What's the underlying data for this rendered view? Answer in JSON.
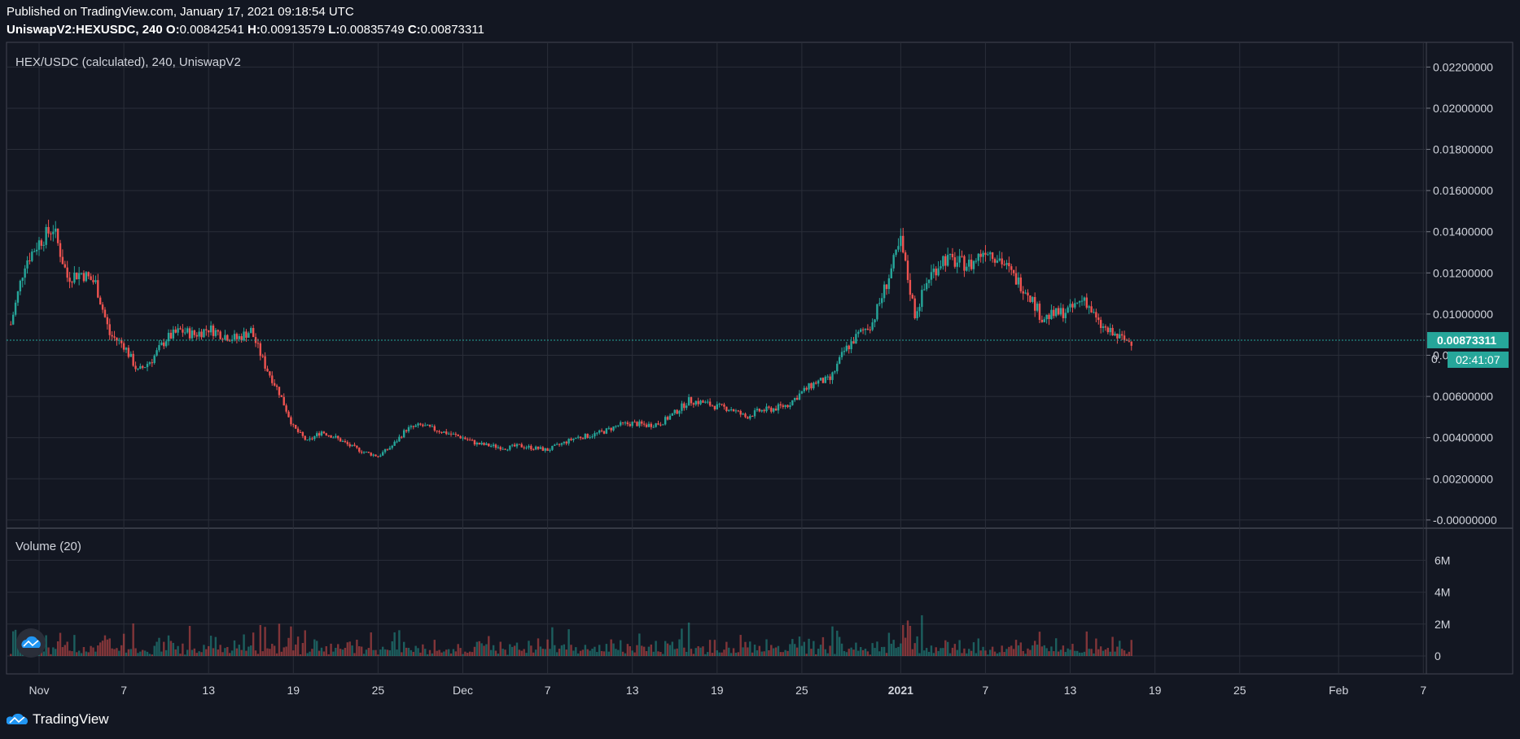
{
  "header": {
    "published": "Published on TradingView.com, January 17, 2021 09:18:54 UTC",
    "symbol": "UniswapV2:HEXUSDC, 240",
    "open_label": "O:",
    "open": "0.00842541",
    "high_label": "H:",
    "high": "0.00913579",
    "low_label": "L:",
    "low": "0.00835749",
    "close_label": "C:",
    "close": "0.00873311"
  },
  "footer": {
    "brand": "TradingView",
    "logo_icon": "tradingview-logo-icon"
  },
  "colors": {
    "background": "#131722",
    "up": "#26a69a",
    "down": "#ef5350",
    "grid": "#2a2e39",
    "price_line": "#26a69a"
  },
  "chart_data": {
    "type": "candlestick",
    "title": "HEX/USDC (calculated), 240, UniswapV2",
    "interval": "240",
    "ylim": [
      -0.0004,
      0.0232
    ],
    "y_ticks": [
      "0.02200000",
      "0.02000000",
      "0.01800000",
      "0.01600000",
      "0.01400000",
      "0.01200000",
      "0.01000000",
      "0.00800000",
      "0.00600000",
      "0.00400000",
      "0.00200000",
      "-0.00000000"
    ],
    "y_tick_values": [
      0.022,
      0.02,
      0.018,
      0.016,
      0.014,
      0.012,
      0.01,
      0.008,
      0.006,
      0.004,
      0.002,
      0.0
    ],
    "x_ticks": [
      "Nov",
      "7",
      "13",
      "19",
      "25",
      "Dec",
      "7",
      "13",
      "19",
      "25",
      "2021",
      "7",
      "13",
      "19",
      "25",
      "Feb",
      "7"
    ],
    "x_tick_dates": [
      "2020-11-01",
      "2020-11-07",
      "2020-11-13",
      "2020-11-19",
      "2020-11-25",
      "2020-12-01",
      "2020-12-07",
      "2020-12-13",
      "2020-12-19",
      "2020-12-25",
      "2021-01-01",
      "2021-01-07",
      "2021-01-13",
      "2021-01-19",
      "2021-01-25",
      "2021-02-01",
      "2021-02-07"
    ],
    "price_series": {
      "dates": [
        "2020-10-30",
        "2020-10-31",
        "2020-11-01",
        "2020-11-02",
        "2020-11-03",
        "2020-11-04",
        "2020-11-05",
        "2020-11-06",
        "2020-11-07",
        "2020-11-08",
        "2020-11-09",
        "2020-11-10",
        "2020-11-11",
        "2020-11-12",
        "2020-11-13",
        "2020-11-14",
        "2020-11-15",
        "2020-11-16",
        "2020-11-17",
        "2020-11-18",
        "2020-11-19",
        "2020-11-20",
        "2020-11-21",
        "2020-11-22",
        "2020-11-23",
        "2020-11-24",
        "2020-11-25",
        "2020-11-26",
        "2020-11-27",
        "2020-11-28",
        "2020-11-29",
        "2020-11-30",
        "2020-12-01",
        "2020-12-02",
        "2020-12-03",
        "2020-12-04",
        "2020-12-05",
        "2020-12-06",
        "2020-12-07",
        "2020-12-08",
        "2020-12-09",
        "2020-12-10",
        "2020-12-11",
        "2020-12-12",
        "2020-12-13",
        "2020-12-14",
        "2020-12-15",
        "2020-12-16",
        "2020-12-17",
        "2020-12-18",
        "2020-12-19",
        "2020-12-20",
        "2020-12-21",
        "2020-12-22",
        "2020-12-23",
        "2020-12-24",
        "2020-12-25",
        "2020-12-26",
        "2020-12-27",
        "2020-12-28",
        "2020-12-29",
        "2020-12-30",
        "2020-12-31",
        "2021-01-01",
        "2021-01-02",
        "2021-01-03",
        "2021-01-04",
        "2021-01-05",
        "2021-01-06",
        "2021-01-07",
        "2021-01-08",
        "2021-01-09",
        "2021-01-10",
        "2021-01-11",
        "2021-01-12",
        "2021-01-13",
        "2021-01-14",
        "2021-01-15",
        "2021-01-16",
        "2021-01-17"
      ],
      "close": [
        0.0095,
        0.0125,
        0.0135,
        0.0142,
        0.0118,
        0.012,
        0.0115,
        0.009,
        0.0085,
        0.0072,
        0.0078,
        0.0088,
        0.0092,
        0.009,
        0.0093,
        0.009,
        0.0088,
        0.0092,
        0.0075,
        0.0062,
        0.0045,
        0.0038,
        0.0043,
        0.004,
        0.0036,
        0.0033,
        0.0031,
        0.0036,
        0.0044,
        0.0046,
        0.0044,
        0.0042,
        0.004,
        0.0037,
        0.0036,
        0.0035,
        0.0036,
        0.0035,
        0.0034,
        0.0037,
        0.004,
        0.0041,
        0.0043,
        0.0046,
        0.0047,
        0.0046,
        0.0047,
        0.0052,
        0.0058,
        0.0057,
        0.0055,
        0.0054,
        0.005,
        0.0053,
        0.0054,
        0.0056,
        0.0062,
        0.0067,
        0.0068,
        0.0082,
        0.009,
        0.0096,
        0.0115,
        0.0135,
        0.01,
        0.0118,
        0.0127,
        0.0125,
        0.0124,
        0.0132,
        0.0127,
        0.0118,
        0.0111,
        0.0098,
        0.01,
        0.0102,
        0.0108,
        0.0095,
        0.009,
        0.0087
      ]
    },
    "volume": {
      "label": "Volume (20)",
      "y_ticks": [
        "6M",
        "4M",
        "2M",
        "0"
      ],
      "y_tick_values": [
        6000000,
        4000000,
        2000000,
        0
      ]
    },
    "last_price_label": "0.00873311",
    "countdown_label": "02:41:07",
    "partial_tick_label": "0."
  }
}
